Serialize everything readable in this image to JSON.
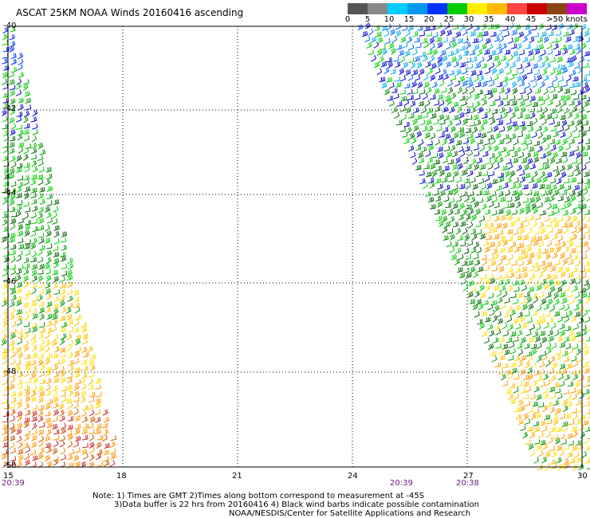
{
  "title": "ASCAT 25KM NOAA Winds 20160416 ascending",
  "legend": {
    "labels": [
      "0",
      "5",
      "10",
      "15",
      "20",
      "25",
      "30",
      "35",
      "40",
      "45",
      ">50 knots"
    ],
    "colors": [
      "#000000",
      "#888888",
      "#00ccff",
      "#0066ff",
      "#0000cc",
      "#00cc00",
      "#006600",
      "#ffdd00",
      "#ff9900",
      "#ff3300",
      "#993300",
      "#9900cc"
    ],
    "legend_colors_displayed": [
      "#888888",
      "#00ccff",
      "#0066ff",
      "#0000cc",
      "#00cc00",
      "#006600",
      "#ffdd00",
      "#ff9900",
      "#ff3300",
      "#993300",
      "#ff00cc",
      "#6600aa"
    ]
  },
  "axes": {
    "lat_labels": [
      "-40",
      "-42",
      "-44",
      "-46",
      "-48",
      "-50"
    ],
    "lon_labels": [
      "15",
      "18",
      "21",
      "24",
      "27",
      "30"
    ]
  },
  "times": [
    "20:39",
    "20:39",
    "20:38"
  ],
  "notes": [
    "Note: 1) Times are GMT 2)Times along bottom correspond to measurement at -45S",
    "3)Data buffer is 22 hrs from 20160416 4) Black wind barbs indicate possible contamination",
    "NOAA/NESDIS/Center for Satellite Applications and Research"
  ]
}
